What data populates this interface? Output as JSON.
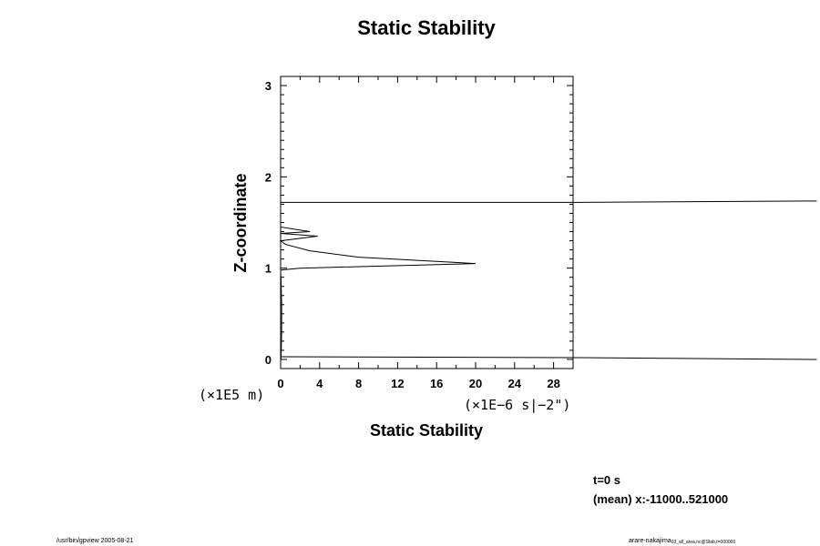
{
  "chart_data": {
    "type": "line",
    "title": "Static Stability",
    "xlabel": "Static Stability",
    "ylabel": "Z-coordinate",
    "x_unit": "(×1E−6 s|−2\")",
    "y_unit": "(×1E5 m)",
    "xlim": [
      0,
      30
    ],
    "ylim": [
      -0.1,
      3.1
    ],
    "x_ticks": [
      "0",
      "4",
      "8",
      "12",
      "16",
      "20",
      "24",
      "28"
    ],
    "y_ticks": [
      "0",
      "1",
      "2",
      "3"
    ],
    "series": [
      {
        "x": [
          0,
          0.05,
          0.1,
          0.1,
          0.05,
          0,
          0,
          0,
          2,
          20,
          8,
          3,
          0.5,
          0,
          3.8,
          0,
          3,
          0,
          0,
          0,
          0,
          0,
          0
        ],
        "y": [
          0,
          0.02,
          0.3,
          0.6,
          0.85,
          0.96,
          0.97,
          0.98,
          1.0,
          1.05,
          1.12,
          1.19,
          1.26,
          1.3,
          1.35,
          1.38,
          1.4,
          1.45,
          1.5,
          1.6,
          1.68,
          1.72,
          3.0
        ]
      },
      {
        "x": [
          0,
          30,
          55
        ],
        "y": [
          1.72,
          1.72,
          1.735
        ]
      },
      {
        "x": [
          0,
          30,
          55
        ],
        "y": [
          0.03,
          0.02,
          0.0
        ]
      }
    ]
  },
  "info": {
    "time": "t=0 s",
    "mean": "(mean) x:-11000..521000"
  },
  "footer": {
    "left": "/usr/bin/gpview 2005-08-21",
    "right_main": "arare-nakajima",
    "right_sub": "03_all_area.nc@Stab,t=000000"
  }
}
